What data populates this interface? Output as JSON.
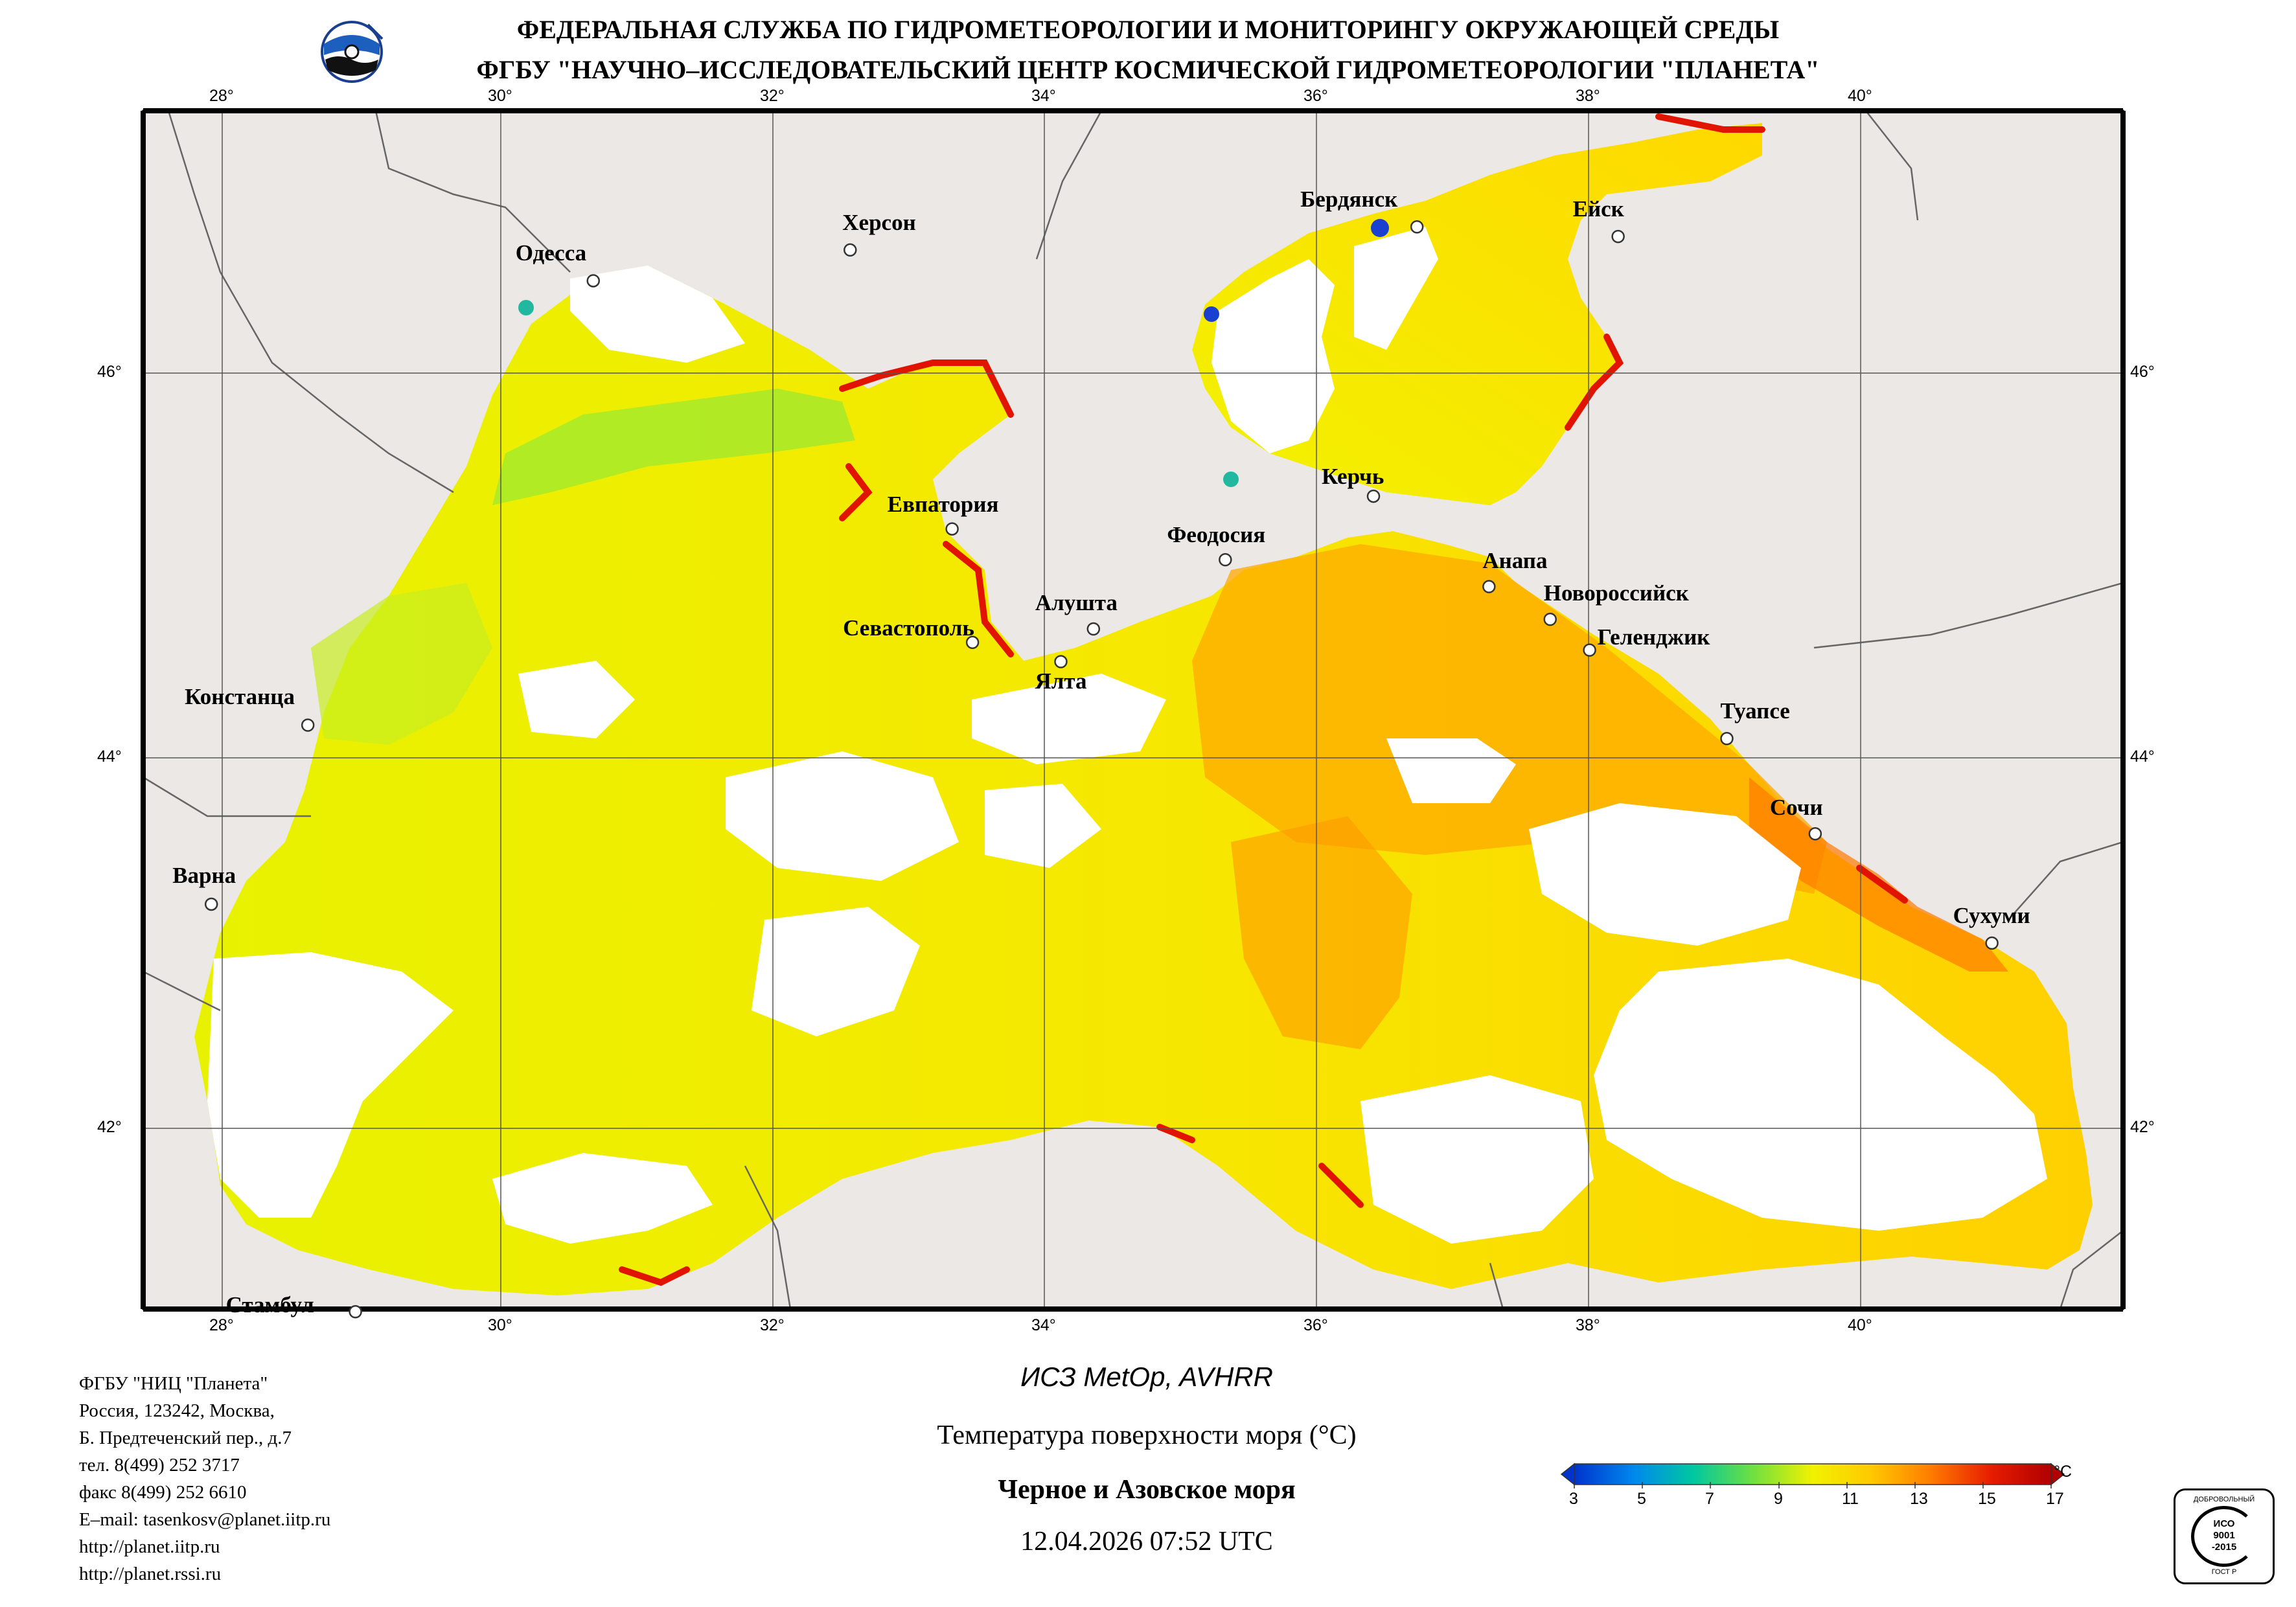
{
  "header": {
    "line1": "ФЕДЕРАЛЬНАЯ СЛУЖБА ПО ГИДРОМЕТЕОРОЛОГИИ И МОНИТОРИНГУ ОКРУЖАЮЩЕЙ СРЕДЫ",
    "line2": "ФГБУ \"НАУЧНО–ИССЛЕДОВАТЕЛЬСКИЙ ЦЕНТР КОСМИЧЕСКОЙ ГИДРОМЕТЕОРОЛОГИИ \"ПЛАНЕТА\""
  },
  "map": {
    "lon_ticks": [
      "28°",
      "30°",
      "32°",
      "34°",
      "36°",
      "38°",
      "40°"
    ],
    "lat_ticks": [
      "46°",
      "44°",
      "42°"
    ],
    "cities": [
      {
        "name": "Одесса",
        "lon": 30.73,
        "lat": 46.48
      },
      {
        "name": "Херсон",
        "lon": 32.62,
        "lat": 46.64
      },
      {
        "name": "Бердянск",
        "lon": 36.79,
        "lat": 46.76
      },
      {
        "name": "Ейск",
        "lon": 38.27,
        "lat": 46.71
      },
      {
        "name": "Евпатория",
        "lon": 33.37,
        "lat": 45.19
      },
      {
        "name": "Керчь",
        "lon": 36.47,
        "lat": 45.36
      },
      {
        "name": "Феодосия",
        "lon": 35.38,
        "lat": 45.03
      },
      {
        "name": "Анапа",
        "lon": 37.32,
        "lat": 44.89
      },
      {
        "name": "Новороссийск",
        "lon": 37.77,
        "lat": 44.72
      },
      {
        "name": "Геленджик",
        "lon": 38.06,
        "lat": 44.56
      },
      {
        "name": "Севастополь",
        "lon": 33.52,
        "lat": 44.6
      },
      {
        "name": "Алушта",
        "lon": 34.41,
        "lat": 44.67
      },
      {
        "name": "Ялта",
        "lon": 34.17,
        "lat": 44.5
      },
      {
        "name": "Констанца",
        "lon": 28.63,
        "lat": 44.17
      },
      {
        "name": "Туапсе",
        "lon": 39.07,
        "lat": 44.1
      },
      {
        "name": "Сочи",
        "lon": 39.72,
        "lat": 43.59
      },
      {
        "name": "Варна",
        "lon": 27.92,
        "lat": 43.21
      },
      {
        "name": "Сухуми",
        "lon": 41.02,
        "lat": 43.0
      },
      {
        "name": "Стамбул",
        "lon": 28.98,
        "lat": 41.01
      }
    ],
    "colors": {
      "land": "#ebe8e6",
      "water_nodata": "#ffffff",
      "border": "#666666"
    }
  },
  "caption": {
    "satellite": "ИСЗ MetOp, AVHRR",
    "parameter": "Температура поверхности моря (°C)",
    "region": "Черное и Азовское моря",
    "datetime": "12.04.2026 07:52 UTC"
  },
  "colorbar": {
    "unit": "°C",
    "ticks": [
      "3",
      "5",
      "7",
      "9",
      "11",
      "13",
      "15",
      "17"
    ],
    "colors": [
      "#0033cc",
      "#0088ee",
      "#00c8a0",
      "#6fe040",
      "#f2f200",
      "#ffc800",
      "#ff7a00",
      "#e61c00",
      "#b00000"
    ]
  },
  "footer": {
    "org": "ФГБУ \"НИЦ \"Планета\"",
    "address1": "Россия, 123242, Москва,",
    "address2": "Б. Предтеченский пер., д.7",
    "phone": "тел. 8(499) 252 3717",
    "fax": "факс 8(499) 252 6610",
    "email": "E–mail: tasenkosv@planet.iitp.ru",
    "url1": "http://planet.iitp.ru",
    "url2": "http://planet.rssi.ru"
  },
  "badge": {
    "top_text": "ДОБРОВОЛЬНЫЙ",
    "iso_line1": "ИСО",
    "iso_line2": "9001",
    "iso_line3": "-2015",
    "bottom_text": "ГОСТ Р"
  }
}
